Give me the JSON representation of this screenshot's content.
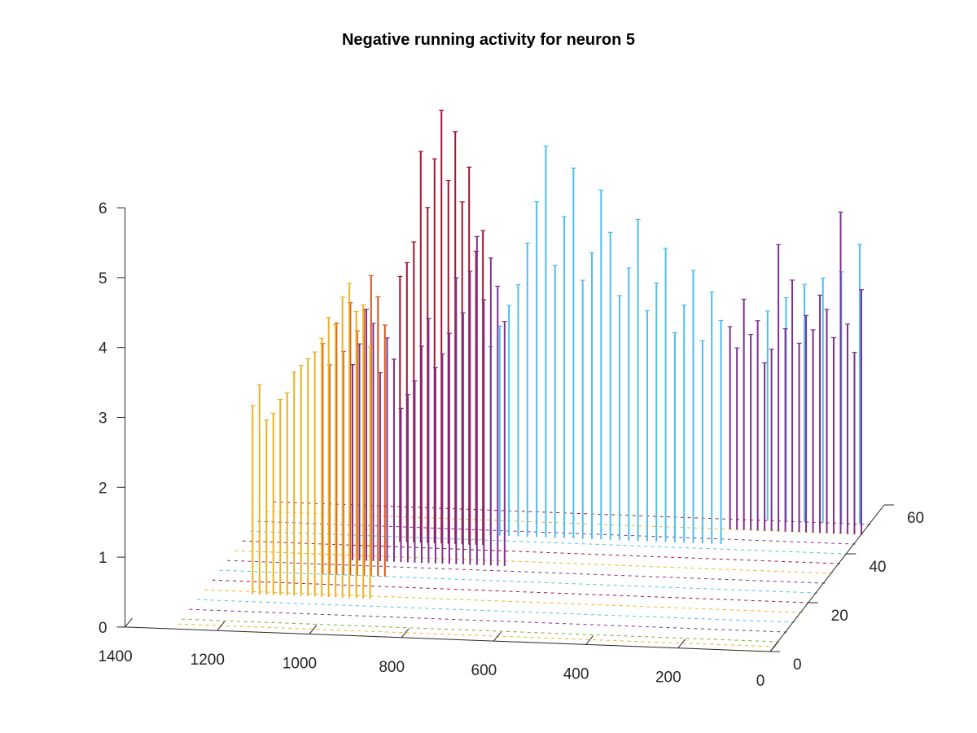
{
  "chart_data": {
    "type": "stem3",
    "title": "Negative running activity for neuron 5",
    "xlabel": "",
    "ylabel": "",
    "zlabel": "",
    "xlim": [
      0,
      1400
    ],
    "ylim": [
      0,
      60
    ],
    "zlim": [
      0,
      6
    ],
    "x_ticks": [
      0,
      200,
      400,
      600,
      800,
      1000,
      1200,
      1400
    ],
    "y_ticks": [
      0,
      20,
      40,
      60
    ],
    "z_ticks": [
      0,
      1,
      2,
      3,
      4,
      5,
      6
    ],
    "grid": false,
    "legend": "none",
    "series": [
      {
        "color": "#EDB120",
        "y": 15,
        "x": [
          930,
          945,
          960,
          975,
          990,
          1005,
          1020,
          1035,
          1050,
          1065,
          1080,
          1095,
          1110,
          1125,
          1140,
          1155,
          1170,
          1185
        ],
        "z": [
          3.6,
          4.2,
          4.1,
          4.5,
          4.3,
          3.9,
          4.0,
          3.7,
          3.5,
          3.4,
          3.3,
          3.2,
          2.9,
          2.8,
          2.6,
          2.5,
          3.0,
          2.7
        ]
      },
      {
        "color": "#D95319",
        "y": 24,
        "x": [
          935,
          950,
          965,
          980,
          995,
          1010,
          1025,
          1040,
          1055,
          1070
        ],
        "z": [
          3.6,
          4.0,
          4.3,
          3.8,
          3.5,
          3.9,
          3.2,
          3.6,
          3.0,
          3.3
        ]
      },
      {
        "color": "#7E2F8E",
        "y": 30,
        "x": [
          700,
          715,
          730,
          745,
          760,
          775,
          790,
          805,
          820,
          835,
          850,
          865,
          880,
          895,
          910,
          925,
          940,
          955,
          970,
          985,
          1000,
          1015,
          1030
        ],
        "z": [
          3.5,
          4.0,
          4.4,
          3.8,
          4.7,
          4.2,
          3.6,
          4.1,
          3.3,
          3.0,
          2.8,
          3.5,
          3.1,
          2.6,
          2.4,
          2.2,
          2.9,
          3.2,
          2.7,
          3.4,
          3.6,
          3.1,
          2.8
        ]
      },
      {
        "color": "#4DBEEE",
        "y": 42,
        "x": [
          280,
          300,
          320,
          340,
          360,
          380,
          400,
          420,
          440,
          460,
          480,
          500,
          520,
          540,
          560,
          580,
          600,
          620,
          640,
          660,
          680,
          700,
          720,
          740,
          760,
          780
        ],
        "z": [
          3.2,
          3.6,
          2.9,
          3.9,
          3.4,
          3.0,
          4.2,
          3.7,
          3.3,
          4.6,
          3.9,
          3.5,
          4.4,
          5.0,
          4.1,
          3.7,
          5.3,
          4.6,
          3.9,
          5.6,
          4.8,
          4.2,
          3.6,
          3.3,
          3.0,
          2.7
        ]
      },
      {
        "color": "#A2142F",
        "y": 38,
        "x": [
          780,
          795,
          810,
          825,
          840,
          855,
          870,
          885,
          900,
          915,
          930,
          945,
          960
        ],
        "z": [
          4.5,
          4.2,
          5.4,
          4.9,
          5.9,
          5.2,
          6.2,
          5.5,
          4.8,
          5.6,
          4.3,
          4.0,
          3.8
        ]
      },
      {
        "color": "#7E2F8E",
        "y": 48,
        "x": [
          0,
          15,
          30,
          45,
          60,
          75,
          90,
          105,
          120,
          135,
          150,
          165,
          180,
          195,
          210,
          225,
          240,
          255,
          270,
          285
        ],
        "z": [
          3.5,
          2.6,
          3.0,
          4.6,
          2.8,
          3.2,
          3.4,
          2.9,
          3.1,
          2.7,
          3.6,
          2.9,
          4.1,
          2.6,
          2.4,
          3.0,
          2.8,
          3.3,
          2.6,
          2.9
        ]
      },
      {
        "color": "#4DBEEE",
        "y": 52,
        "x": [
          20,
          60,
          100,
          140,
          180,
          220
        ],
        "z": [
          4.0,
          3.6,
          3.5,
          3.4,
          3.2,
          3.0
        ]
      }
    ],
    "baseline_rows": [
      {
        "y": 2,
        "color": "#EDB120"
      },
      {
        "y": 4,
        "color": "#77AC30"
      },
      {
        "y": 8,
        "color": "#7E2F8E"
      },
      {
        "y": 12,
        "color": "#4DBEEE"
      },
      {
        "y": 16,
        "color": "#EDB120"
      },
      {
        "y": 20,
        "color": "#A2142F"
      },
      {
        "y": 24,
        "color": "#4DBEEE"
      },
      {
        "y": 28,
        "color": "#7E2F8E"
      },
      {
        "y": 32,
        "color": "#EDB120"
      },
      {
        "y": 36,
        "color": "#A2142F"
      },
      {
        "y": 40,
        "color": "#4DBEEE"
      },
      {
        "y": 44,
        "color": "#7E2F8E"
      },
      {
        "y": 48,
        "color": "#EDB120"
      },
      {
        "y": 52,
        "color": "#A2142F"
      }
    ]
  }
}
